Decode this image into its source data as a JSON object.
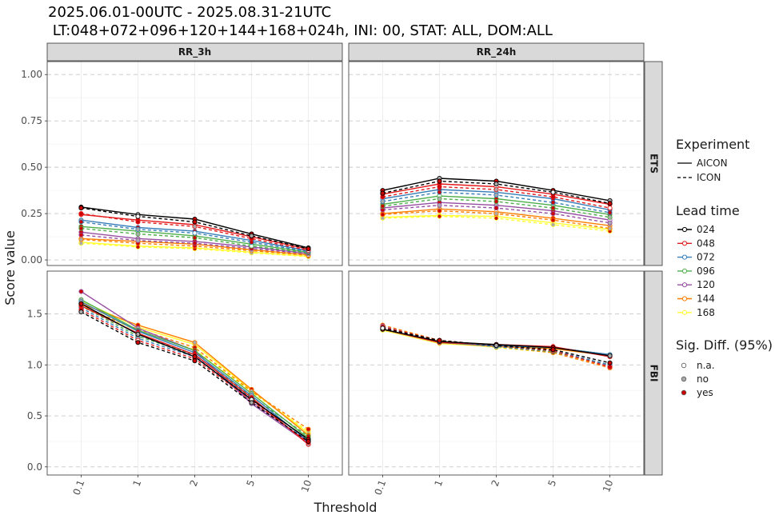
{
  "title_line1": "2025.06.01-00UTC - 2025.08.31-21UTC",
  "title_line2": " LT:048+072+096+120+144+168+024h, INI: 00, STAT: ALL, DOM:ALL",
  "xlabel": "Threshold",
  "ylabel": "Score value",
  "legend": {
    "experiment": {
      "title": "Experiment",
      "items": [
        "AICON",
        "ICON"
      ]
    },
    "lead_time": {
      "title": "Lead time",
      "items": [
        "024",
        "048",
        "072",
        "096",
        "120",
        "144",
        "168"
      ]
    },
    "sig": {
      "title": "Sig. Diff. (95%)",
      "items": [
        "n.a.",
        "no",
        "yes"
      ]
    }
  },
  "colors": {
    "024": "#000000",
    "048": "#e41a1c",
    "072": "#377eb8",
    "096": "#4daf4a",
    "120": "#984ea3",
    "144": "#ff7f00",
    "168": "#ffff33",
    "sig_na": "#ffffff",
    "sig_no": "#aaaaaa",
    "sig_yes": "#cc0000"
  },
  "chart_data": {
    "type": "line",
    "thresholds": [
      "0.1",
      "1",
      "2",
      "5",
      "10"
    ],
    "columns": [
      "RR_3h",
      "RR_24h"
    ],
    "rows": [
      "ETS",
      "FBI"
    ],
    "ylim": {
      "ETS": [
        -0.03,
        1.07
      ],
      "FBI": [
        -0.08,
        1.92
      ]
    },
    "yticks": {
      "ETS": [
        "0.00",
        "0.25",
        "0.50",
        "0.75",
        "1.00"
      ],
      "FBI": [
        "0.0",
        "0.5",
        "1.0",
        "1.5"
      ]
    },
    "grid": true,
    "legend_position": "right",
    "panels": [
      {
        "row": "ETS",
        "col": "RR_3h",
        "series": [
          {
            "lead": "024",
            "exp": "AICON",
            "values": [
              0.285,
              0.245,
              0.22,
              0.14,
              0.065
            ]
          },
          {
            "lead": "024",
            "exp": "ICON",
            "values": [
              0.28,
              0.235,
              0.205,
              0.13,
              0.06
            ]
          },
          {
            "lead": "048",
            "exp": "AICON",
            "values": [
              0.245,
              0.215,
              0.19,
              0.125,
              0.058
            ]
          },
          {
            "lead": "048",
            "exp": "ICON",
            "values": [
              0.25,
              0.205,
              0.18,
              0.115,
              0.052
            ]
          },
          {
            "lead": "072",
            "exp": "AICON",
            "values": [
              0.215,
              0.175,
              0.155,
              0.105,
              0.05
            ]
          },
          {
            "lead": "072",
            "exp": "ICON",
            "values": [
              0.205,
              0.165,
              0.145,
              0.095,
              0.045
            ]
          },
          {
            "lead": "096",
            "exp": "AICON",
            "values": [
              0.18,
              0.155,
              0.13,
              0.085,
              0.042
            ]
          },
          {
            "lead": "096",
            "exp": "ICON",
            "values": [
              0.17,
              0.14,
              0.12,
              0.075,
              0.038
            ]
          },
          {
            "lead": "120",
            "exp": "AICON",
            "values": [
              0.15,
              0.115,
              0.1,
              0.07,
              0.035
            ]
          },
          {
            "lead": "120",
            "exp": "ICON",
            "values": [
              0.135,
              0.105,
              0.09,
              0.062,
              0.032
            ]
          },
          {
            "lead": "144",
            "exp": "AICON",
            "values": [
              0.115,
              0.1,
              0.085,
              0.055,
              0.028
            ]
          },
          {
            "lead": "144",
            "exp": "ICON",
            "values": [
              0.11,
              0.09,
              0.075,
              0.05,
              0.025
            ]
          },
          {
            "lead": "168",
            "exp": "AICON",
            "values": [
              0.095,
              0.075,
              0.065,
              0.042,
              0.02
            ]
          },
          {
            "lead": "168",
            "exp": "ICON",
            "values": [
              0.09,
              0.07,
              0.06,
              0.038,
              0.018
            ]
          }
        ]
      },
      {
        "row": "ETS",
        "col": "RR_24h",
        "series": [
          {
            "lead": "024",
            "exp": "AICON",
            "values": [
              0.375,
              0.44,
              0.425,
              0.375,
              0.32
            ]
          },
          {
            "lead": "024",
            "exp": "ICON",
            "values": [
              0.36,
              0.425,
              0.41,
              0.365,
              0.305
            ]
          },
          {
            "lead": "048",
            "exp": "AICON",
            "values": [
              0.355,
              0.41,
              0.395,
              0.355,
              0.3
            ]
          },
          {
            "lead": "048",
            "exp": "ICON",
            "values": [
              0.34,
              0.395,
              0.38,
              0.34,
              0.28
            ]
          },
          {
            "lead": "072",
            "exp": "AICON",
            "values": [
              0.33,
              0.38,
              0.365,
              0.33,
              0.27
            ]
          },
          {
            "lead": "072",
            "exp": "ICON",
            "values": [
              0.315,
              0.365,
              0.35,
              0.31,
              0.255
            ]
          },
          {
            "lead": "096",
            "exp": "AICON",
            "values": [
              0.3,
              0.345,
              0.33,
              0.295,
              0.245
            ]
          },
          {
            "lead": "096",
            "exp": "ICON",
            "values": [
              0.29,
              0.33,
              0.315,
              0.28,
              0.23
            ]
          },
          {
            "lead": "120",
            "exp": "AICON",
            "values": [
              0.28,
              0.31,
              0.295,
              0.265,
              0.215
            ]
          },
          {
            "lead": "120",
            "exp": "ICON",
            "values": [
              0.27,
              0.295,
              0.28,
              0.25,
              0.2
            ]
          },
          {
            "lead": "144",
            "exp": "AICON",
            "values": [
              0.25,
              0.275,
              0.26,
              0.225,
              0.185
            ]
          },
          {
            "lead": "144",
            "exp": "ICON",
            "values": [
              0.245,
              0.265,
              0.25,
              0.215,
              0.17
            ]
          },
          {
            "lead": "168",
            "exp": "AICON",
            "values": [
              0.23,
              0.24,
              0.235,
              0.2,
              0.165
            ]
          },
          {
            "lead": "168",
            "exp": "ICON",
            "values": [
              0.225,
              0.235,
              0.225,
              0.19,
              0.155
            ]
          }
        ]
      },
      {
        "row": "FBI",
        "col": "RR_3h",
        "series": [
          {
            "lead": "024",
            "exp": "AICON",
            "values": [
              1.6,
              1.3,
              1.08,
              0.66,
              0.27
            ]
          },
          {
            "lead": "024",
            "exp": "ICON",
            "values": [
              1.52,
              1.22,
              1.04,
              0.63,
              0.25
            ]
          },
          {
            "lead": "048",
            "exp": "AICON",
            "values": [
              1.58,
              1.31,
              1.1,
              0.68,
              0.22
            ]
          },
          {
            "lead": "048",
            "exp": "ICON",
            "values": [
              1.54,
              1.24,
              1.06,
              0.65,
              0.24
            ]
          },
          {
            "lead": "072",
            "exp": "AICON",
            "values": [
              1.62,
              1.33,
              1.12,
              0.7,
              0.25
            ]
          },
          {
            "lead": "072",
            "exp": "ICON",
            "values": [
              1.56,
              1.26,
              1.08,
              0.67,
              0.26
            ]
          },
          {
            "lead": "096",
            "exp": "AICON",
            "values": [
              1.64,
              1.34,
              1.14,
              0.72,
              0.28
            ]
          },
          {
            "lead": "096",
            "exp": "ICON",
            "values": [
              1.58,
              1.28,
              1.1,
              0.69,
              0.3
            ]
          },
          {
            "lead": "120",
            "exp": "AICON",
            "values": [
              1.72,
              1.36,
              1.14,
              0.62,
              0.23
            ]
          },
          {
            "lead": "120",
            "exp": "ICON",
            "values": [
              1.6,
              1.3,
              1.09,
              0.64,
              0.24
            ]
          },
          {
            "lead": "144",
            "exp": "AICON",
            "values": [
              1.6,
              1.39,
              1.22,
              0.76,
              0.31
            ]
          },
          {
            "lead": "144",
            "exp": "ICON",
            "values": [
              1.57,
              1.35,
              1.17,
              0.74,
              0.37
            ]
          },
          {
            "lead": "168",
            "exp": "AICON",
            "values": [
              1.63,
              1.37,
              1.2,
              0.75,
              0.33
            ]
          },
          {
            "lead": "168",
            "exp": "ICON",
            "values": [
              1.59,
              1.33,
              1.15,
              0.73,
              0.35
            ]
          }
        ]
      },
      {
        "row": "FBI",
        "col": "RR_24h",
        "series": [
          {
            "lead": "024",
            "exp": "AICON",
            "values": [
              1.35,
              1.23,
              1.2,
              1.17,
              1.09
            ]
          },
          {
            "lead": "024",
            "exp": "ICON",
            "values": [
              1.36,
              1.24,
              1.19,
              1.15,
              1.02
            ]
          },
          {
            "lead": "048",
            "exp": "AICON",
            "values": [
              1.35,
              1.22,
              1.2,
              1.18,
              1.08
            ]
          },
          {
            "lead": "048",
            "exp": "ICON",
            "values": [
              1.37,
              1.24,
              1.19,
              1.14,
              0.98
            ]
          },
          {
            "lead": "072",
            "exp": "AICON",
            "values": [
              1.35,
              1.22,
              1.19,
              1.17,
              1.1
            ]
          },
          {
            "lead": "072",
            "exp": "ICON",
            "values": [
              1.37,
              1.23,
              1.18,
              1.14,
              1.0
            ]
          },
          {
            "lead": "096",
            "exp": "AICON",
            "values": [
              1.35,
              1.22,
              1.19,
              1.17,
              1.1
            ]
          },
          {
            "lead": "096",
            "exp": "ICON",
            "values": [
              1.37,
              1.23,
              1.18,
              1.13,
              1.0
            ]
          },
          {
            "lead": "120",
            "exp": "AICON",
            "values": [
              1.35,
              1.22,
              1.19,
              1.17,
              1.1
            ]
          },
          {
            "lead": "120",
            "exp": "ICON",
            "values": [
              1.38,
              1.23,
              1.18,
              1.13,
              0.99
            ]
          },
          {
            "lead": "144",
            "exp": "AICON",
            "values": [
              1.35,
              1.22,
              1.18,
              1.16,
              1.09
            ]
          },
          {
            "lead": "144",
            "exp": "ICON",
            "values": [
              1.39,
              1.24,
              1.18,
              1.12,
              0.97
            ]
          },
          {
            "lead": "168",
            "exp": "AICON",
            "values": [
              1.34,
              1.21,
              1.18,
              1.16,
              1.09
            ]
          },
          {
            "lead": "168",
            "exp": "ICON",
            "values": [
              1.38,
              1.23,
              1.17,
              1.12,
              0.98
            ]
          }
        ]
      }
    ]
  }
}
